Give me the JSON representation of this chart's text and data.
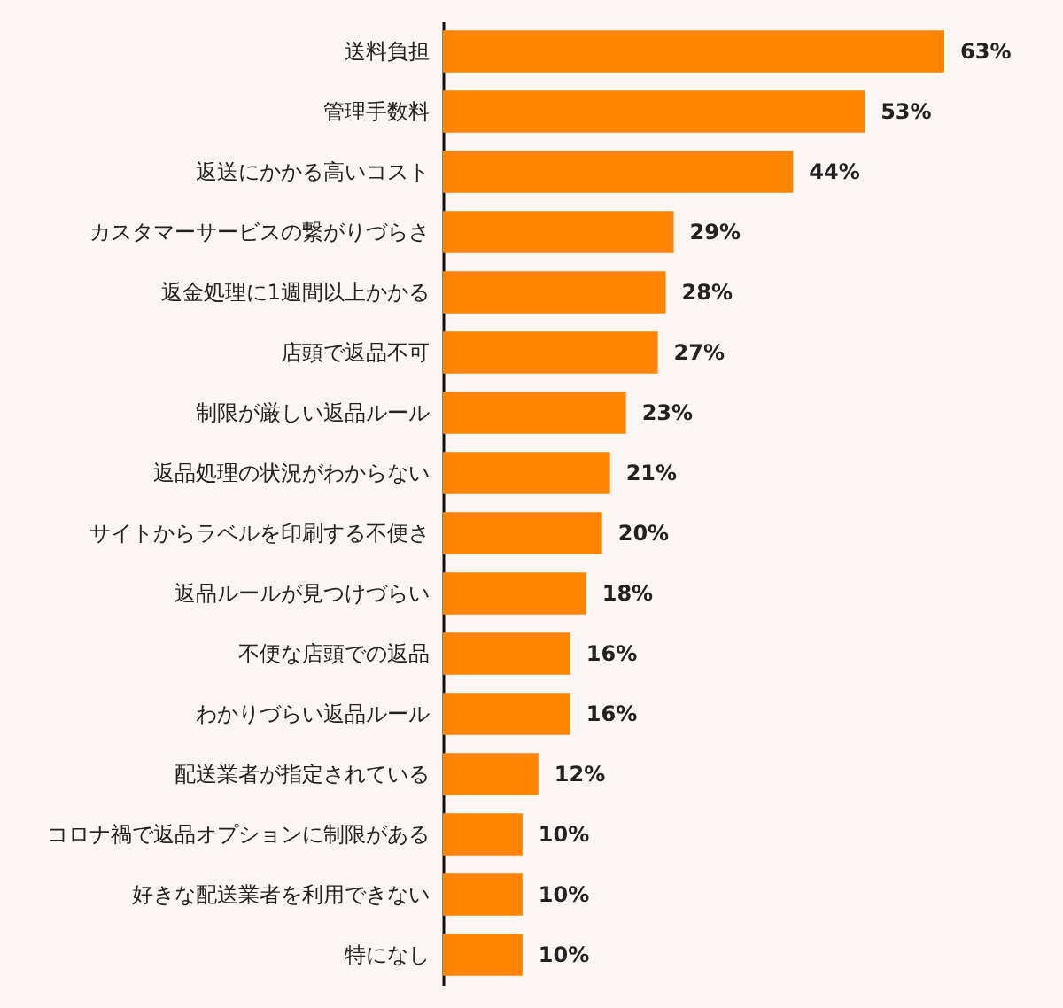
{
  "chart_data": {
    "type": "bar",
    "orientation": "horizontal",
    "categories": [
      "送料負担",
      "管理手数料",
      "返送にかかる高いコスト",
      "カスタマーサービスの繋がりづらさ",
      "返金処理に1週間以上かかる",
      "店頭で返品不可",
      "制限が厳しい返品ルール",
      "返品処理の状況がわからない",
      "サイトからラベルを印刷する不便さ",
      "返品ルールが見つけづらい",
      "不便な店頭での返品",
      "わかりづらい返品ルール",
      "配送業者が指定されている",
      "コロナ禍で返品オプションに制限がある",
      "好きな配送業者を利用できない",
      "特になし"
    ],
    "values": [
      63,
      53,
      44,
      29,
      28,
      27,
      23,
      21,
      20,
      18,
      16,
      16,
      12,
      10,
      10,
      10
    ],
    "value_labels": [
      "63%",
      "53%",
      "44%",
      "29%",
      "28%",
      "27%",
      "23%",
      "21%",
      "20%",
      "18%",
      "16%",
      "16%",
      "12%",
      "10%",
      "10%",
      "10%"
    ],
    "color": "#ff8500"
  }
}
